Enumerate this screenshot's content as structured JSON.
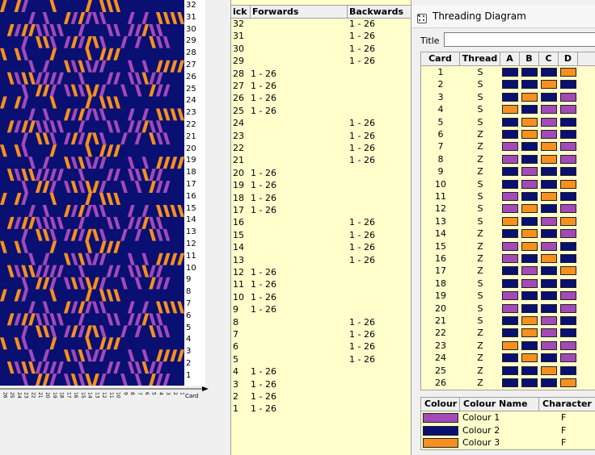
{
  "colors": {
    "c1": "#a34ab8",
    "c2": "#0a0f72",
    "c3": "#f7901e"
  },
  "pattern": {
    "pick_labels": [
      "32",
      "31",
      "30",
      "29",
      "28",
      "27",
      "26",
      "25",
      "24",
      "23",
      "22",
      "21",
      "20",
      "19",
      "18",
      "17",
      "16",
      "15",
      "14",
      "13",
      "12",
      "11",
      "10",
      "9",
      "8",
      "7",
      "6",
      "5",
      "4",
      "3",
      "2",
      "1"
    ],
    "card_axis_label": "Card"
  },
  "picks": {
    "headers": [
      "ick",
      "Forwards",
      "Backwards"
    ],
    "rows": [
      {
        "pick": "32",
        "fwd": "",
        "bwd": "1 - 26"
      },
      {
        "pick": "31",
        "fwd": "",
        "bwd": "1 - 26"
      },
      {
        "pick": "30",
        "fwd": "",
        "bwd": "1 - 26"
      },
      {
        "pick": "29",
        "fwd": "",
        "bwd": "1 - 26"
      },
      {
        "pick": "28",
        "fwd": "1 - 26",
        "bwd": ""
      },
      {
        "pick": "27",
        "fwd": "1 - 26",
        "bwd": ""
      },
      {
        "pick": "26",
        "fwd": "1 - 26",
        "bwd": ""
      },
      {
        "pick": "25",
        "fwd": "1 - 26",
        "bwd": ""
      },
      {
        "pick": "24",
        "fwd": "",
        "bwd": "1 - 26"
      },
      {
        "pick": "23",
        "fwd": "",
        "bwd": "1 - 26"
      },
      {
        "pick": "22",
        "fwd": "",
        "bwd": "1 - 26"
      },
      {
        "pick": "21",
        "fwd": "",
        "bwd": "1 - 26"
      },
      {
        "pick": "20",
        "fwd": "1 - 26",
        "bwd": ""
      },
      {
        "pick": "19",
        "fwd": "1 - 26",
        "bwd": ""
      },
      {
        "pick": "18",
        "fwd": "1 - 26",
        "bwd": ""
      },
      {
        "pick": "17",
        "fwd": "1 - 26",
        "bwd": ""
      },
      {
        "pick": "16",
        "fwd": "",
        "bwd": "1 - 26"
      },
      {
        "pick": "15",
        "fwd": "",
        "bwd": "1 - 26"
      },
      {
        "pick": "14",
        "fwd": "",
        "bwd": "1 - 26"
      },
      {
        "pick": "13",
        "fwd": "",
        "bwd": "1 - 26"
      },
      {
        "pick": "12",
        "fwd": "1 - 26",
        "bwd": ""
      },
      {
        "pick": "11",
        "fwd": "1 - 26",
        "bwd": ""
      },
      {
        "pick": "10",
        "fwd": "1 - 26",
        "bwd": ""
      },
      {
        "pick": "9",
        "fwd": "1 - 26",
        "bwd": ""
      },
      {
        "pick": "8",
        "fwd": "",
        "bwd": "1 - 26"
      },
      {
        "pick": "7",
        "fwd": "",
        "bwd": "1 - 26"
      },
      {
        "pick": "6",
        "fwd": "",
        "bwd": "1 - 26"
      },
      {
        "pick": "5",
        "fwd": "",
        "bwd": "1 - 26"
      },
      {
        "pick": "4",
        "fwd": "1 - 26",
        "bwd": ""
      },
      {
        "pick": "3",
        "fwd": "1 - 26",
        "bwd": ""
      },
      {
        "pick": "2",
        "fwd": "1 - 26",
        "bwd": ""
      },
      {
        "pick": "1",
        "fwd": "1 - 26",
        "bwd": ""
      }
    ]
  },
  "threading": {
    "window_title": "Threading Diagram",
    "window_icon": "grid-icon",
    "title_label": "Title",
    "title_value": "",
    "headers": [
      "Card",
      "Thread",
      "A",
      "B",
      "C",
      "D"
    ],
    "cards": [
      {
        "card": "1",
        "thread": "S",
        "holes": [
          "c2",
          "c2",
          "c2",
          "c3"
        ]
      },
      {
        "card": "2",
        "thread": "S",
        "holes": [
          "c2",
          "c2",
          "c3",
          "c2"
        ]
      },
      {
        "card": "3",
        "thread": "S",
        "holes": [
          "c2",
          "c3",
          "c2",
          "c1"
        ]
      },
      {
        "card": "4",
        "thread": "S",
        "holes": [
          "c3",
          "c2",
          "c1",
          "c1"
        ]
      },
      {
        "card": "5",
        "thread": "S",
        "holes": [
          "c2",
          "c3",
          "c1",
          "c2"
        ]
      },
      {
        "card": "6",
        "thread": "Z",
        "holes": [
          "c2",
          "c3",
          "c1",
          "c2"
        ]
      },
      {
        "card": "7",
        "thread": "Z",
        "holes": [
          "c1",
          "c2",
          "c3",
          "c1"
        ]
      },
      {
        "card": "8",
        "thread": "Z",
        "holes": [
          "c1",
          "c2",
          "c3",
          "c1"
        ]
      },
      {
        "card": "9",
        "thread": "Z",
        "holes": [
          "c2",
          "c1",
          "c2",
          "c2"
        ]
      },
      {
        "card": "10",
        "thread": "S",
        "holes": [
          "c2",
          "c1",
          "c2",
          "c3"
        ]
      },
      {
        "card": "11",
        "thread": "S",
        "holes": [
          "c1",
          "c2",
          "c3",
          "c2"
        ]
      },
      {
        "card": "12",
        "thread": "S",
        "holes": [
          "c1",
          "c3",
          "c2",
          "c1"
        ]
      },
      {
        "card": "13",
        "thread": "S",
        "holes": [
          "c3",
          "c2",
          "c1",
          "c3"
        ]
      },
      {
        "card": "14",
        "thread": "Z",
        "holes": [
          "c2",
          "c3",
          "c2",
          "c1"
        ]
      },
      {
        "card": "15",
        "thread": "Z",
        "holes": [
          "c1",
          "c3",
          "c1",
          "c2"
        ]
      },
      {
        "card": "16",
        "thread": "Z",
        "holes": [
          "c1",
          "c2",
          "c3",
          "c2"
        ]
      },
      {
        "card": "17",
        "thread": "Z",
        "holes": [
          "c2",
          "c1",
          "c2",
          "c3"
        ]
      },
      {
        "card": "18",
        "thread": "S",
        "holes": [
          "c2",
          "c1",
          "c2",
          "c2"
        ]
      },
      {
        "card": "19",
        "thread": "S",
        "holes": [
          "c1",
          "c2",
          "c2",
          "c1"
        ]
      },
      {
        "card": "20",
        "thread": "S",
        "holes": [
          "c1",
          "c2",
          "c2",
          "c1"
        ]
      },
      {
        "card": "21",
        "thread": "S",
        "holes": [
          "c2",
          "c3",
          "c1",
          "c2"
        ]
      },
      {
        "card": "22",
        "thread": "Z",
        "holes": [
          "c2",
          "c3",
          "c1",
          "c2"
        ]
      },
      {
        "card": "23",
        "thread": "Z",
        "holes": [
          "c3",
          "c2",
          "c1",
          "c1"
        ]
      },
      {
        "card": "24",
        "thread": "Z",
        "holes": [
          "c2",
          "c3",
          "c2",
          "c1"
        ]
      },
      {
        "card": "25",
        "thread": "Z",
        "holes": [
          "c2",
          "c2",
          "c3",
          "c2"
        ]
      },
      {
        "card": "26",
        "thread": "Z",
        "holes": [
          "c2",
          "c2",
          "c2",
          "c3"
        ]
      }
    ],
    "colour_headers": [
      "Colour",
      "Colour Name",
      "Character"
    ],
    "colours": [
      {
        "key": "c1",
        "name": "Colour 1",
        "char": "F"
      },
      {
        "key": "c2",
        "name": "Colour 2",
        "char": "F"
      },
      {
        "key": "c3",
        "name": "Colour 3",
        "char": "F"
      }
    ]
  }
}
